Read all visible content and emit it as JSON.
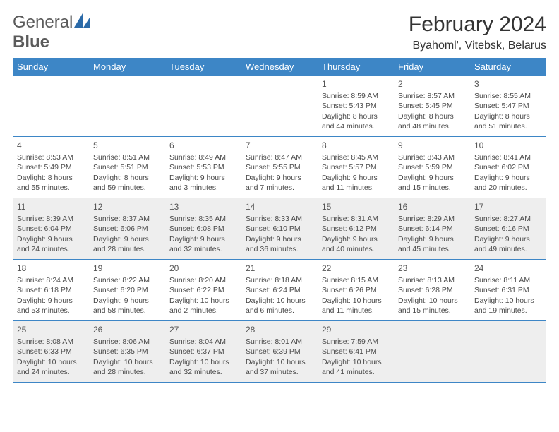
{
  "brand": {
    "name_part1": "General",
    "name_part2": "Blue"
  },
  "title": "February 2024",
  "location": "Byahoml', Vitebsk, Belarus",
  "colors": {
    "header_bar": "#3d86c6",
    "shaded_bg": "#eeeeee",
    "rule": "#3d86c6",
    "text": "#333333",
    "logo_gray": "#5b5b5b",
    "logo_blue": "#2b6aa8"
  },
  "weekdays": [
    "Sunday",
    "Monday",
    "Tuesday",
    "Wednesday",
    "Thursday",
    "Friday",
    "Saturday"
  ],
  "weeks": [
    [
      {
        "n": "",
        "sr": "",
        "ss": "",
        "dl": "",
        "empty": true
      },
      {
        "n": "",
        "sr": "",
        "ss": "",
        "dl": "",
        "empty": true
      },
      {
        "n": "",
        "sr": "",
        "ss": "",
        "dl": "",
        "empty": true
      },
      {
        "n": "",
        "sr": "",
        "ss": "",
        "dl": "",
        "empty": true
      },
      {
        "n": "1",
        "sr": "Sunrise: 8:59 AM",
        "ss": "Sunset: 5:43 PM",
        "dl": "Daylight: 8 hours and 44 minutes."
      },
      {
        "n": "2",
        "sr": "Sunrise: 8:57 AM",
        "ss": "Sunset: 5:45 PM",
        "dl": "Daylight: 8 hours and 48 minutes."
      },
      {
        "n": "3",
        "sr": "Sunrise: 8:55 AM",
        "ss": "Sunset: 5:47 PM",
        "dl": "Daylight: 8 hours and 51 minutes."
      }
    ],
    [
      {
        "n": "4",
        "sr": "Sunrise: 8:53 AM",
        "ss": "Sunset: 5:49 PM",
        "dl": "Daylight: 8 hours and 55 minutes."
      },
      {
        "n": "5",
        "sr": "Sunrise: 8:51 AM",
        "ss": "Sunset: 5:51 PM",
        "dl": "Daylight: 8 hours and 59 minutes."
      },
      {
        "n": "6",
        "sr": "Sunrise: 8:49 AM",
        "ss": "Sunset: 5:53 PM",
        "dl": "Daylight: 9 hours and 3 minutes."
      },
      {
        "n": "7",
        "sr": "Sunrise: 8:47 AM",
        "ss": "Sunset: 5:55 PM",
        "dl": "Daylight: 9 hours and 7 minutes."
      },
      {
        "n": "8",
        "sr": "Sunrise: 8:45 AM",
        "ss": "Sunset: 5:57 PM",
        "dl": "Daylight: 9 hours and 11 minutes."
      },
      {
        "n": "9",
        "sr": "Sunrise: 8:43 AM",
        "ss": "Sunset: 5:59 PM",
        "dl": "Daylight: 9 hours and 15 minutes."
      },
      {
        "n": "10",
        "sr": "Sunrise: 8:41 AM",
        "ss": "Sunset: 6:02 PM",
        "dl": "Daylight: 9 hours and 20 minutes."
      }
    ],
    [
      {
        "n": "11",
        "sr": "Sunrise: 8:39 AM",
        "ss": "Sunset: 6:04 PM",
        "dl": "Daylight: 9 hours and 24 minutes.",
        "shaded": true
      },
      {
        "n": "12",
        "sr": "Sunrise: 8:37 AM",
        "ss": "Sunset: 6:06 PM",
        "dl": "Daylight: 9 hours and 28 minutes.",
        "shaded": true
      },
      {
        "n": "13",
        "sr": "Sunrise: 8:35 AM",
        "ss": "Sunset: 6:08 PM",
        "dl": "Daylight: 9 hours and 32 minutes.",
        "shaded": true
      },
      {
        "n": "14",
        "sr": "Sunrise: 8:33 AM",
        "ss": "Sunset: 6:10 PM",
        "dl": "Daylight: 9 hours and 36 minutes.",
        "shaded": true
      },
      {
        "n": "15",
        "sr": "Sunrise: 8:31 AM",
        "ss": "Sunset: 6:12 PM",
        "dl": "Daylight: 9 hours and 40 minutes.",
        "shaded": true
      },
      {
        "n": "16",
        "sr": "Sunrise: 8:29 AM",
        "ss": "Sunset: 6:14 PM",
        "dl": "Daylight: 9 hours and 45 minutes.",
        "shaded": true
      },
      {
        "n": "17",
        "sr": "Sunrise: 8:27 AM",
        "ss": "Sunset: 6:16 PM",
        "dl": "Daylight: 9 hours and 49 minutes.",
        "shaded": true
      }
    ],
    [
      {
        "n": "18",
        "sr": "Sunrise: 8:24 AM",
        "ss": "Sunset: 6:18 PM",
        "dl": "Daylight: 9 hours and 53 minutes."
      },
      {
        "n": "19",
        "sr": "Sunrise: 8:22 AM",
        "ss": "Sunset: 6:20 PM",
        "dl": "Daylight: 9 hours and 58 minutes."
      },
      {
        "n": "20",
        "sr": "Sunrise: 8:20 AM",
        "ss": "Sunset: 6:22 PM",
        "dl": "Daylight: 10 hours and 2 minutes."
      },
      {
        "n": "21",
        "sr": "Sunrise: 8:18 AM",
        "ss": "Sunset: 6:24 PM",
        "dl": "Daylight: 10 hours and 6 minutes."
      },
      {
        "n": "22",
        "sr": "Sunrise: 8:15 AM",
        "ss": "Sunset: 6:26 PM",
        "dl": "Daylight: 10 hours and 11 minutes."
      },
      {
        "n": "23",
        "sr": "Sunrise: 8:13 AM",
        "ss": "Sunset: 6:28 PM",
        "dl": "Daylight: 10 hours and 15 minutes."
      },
      {
        "n": "24",
        "sr": "Sunrise: 8:11 AM",
        "ss": "Sunset: 6:31 PM",
        "dl": "Daylight: 10 hours and 19 minutes."
      }
    ],
    [
      {
        "n": "25",
        "sr": "Sunrise: 8:08 AM",
        "ss": "Sunset: 6:33 PM",
        "dl": "Daylight: 10 hours and 24 minutes.",
        "shaded": true
      },
      {
        "n": "26",
        "sr": "Sunrise: 8:06 AM",
        "ss": "Sunset: 6:35 PM",
        "dl": "Daylight: 10 hours and 28 minutes.",
        "shaded": true
      },
      {
        "n": "27",
        "sr": "Sunrise: 8:04 AM",
        "ss": "Sunset: 6:37 PM",
        "dl": "Daylight: 10 hours and 32 minutes.",
        "shaded": true
      },
      {
        "n": "28",
        "sr": "Sunrise: 8:01 AM",
        "ss": "Sunset: 6:39 PM",
        "dl": "Daylight: 10 hours and 37 minutes.",
        "shaded": true
      },
      {
        "n": "29",
        "sr": "Sunrise: 7:59 AM",
        "ss": "Sunset: 6:41 PM",
        "dl": "Daylight: 10 hours and 41 minutes.",
        "shaded": true
      },
      {
        "n": "",
        "sr": "",
        "ss": "",
        "dl": "",
        "empty": true,
        "shaded": true
      },
      {
        "n": "",
        "sr": "",
        "ss": "",
        "dl": "",
        "empty": true,
        "shaded": true
      }
    ]
  ]
}
